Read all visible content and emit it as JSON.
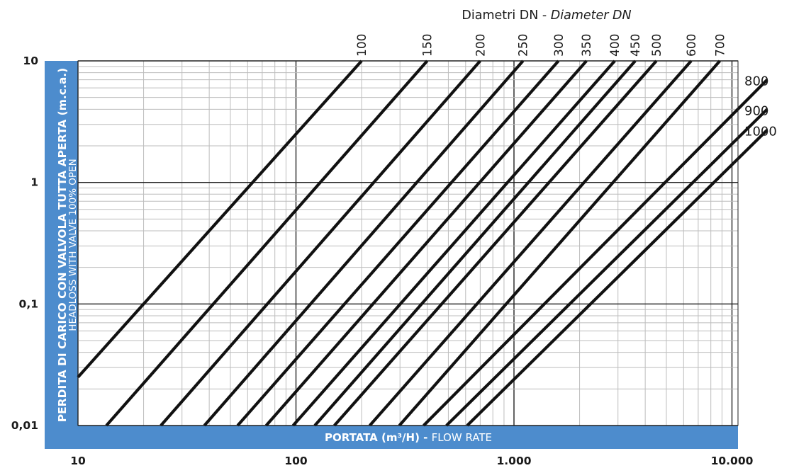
{
  "chart_data": {
    "type": "line",
    "title": "",
    "top_axis_title": {
      "regular": "Diametri DN - ",
      "italic": "Diameter DN"
    },
    "xlabel": {
      "bold": "PORTATA (m³/H) - ",
      "regular": "FLOW RATE"
    },
    "ylabel": {
      "line1": "PERDITA DI CARICO CON VALVOLA TUTTA APERTA (m.c.a.)",
      "line2": "HEADLOSS WITH VALVE 100% OPEN"
    },
    "x_scale": "log",
    "y_scale": "log",
    "xlim": [
      10,
      14500
    ],
    "ylim": [
      0.01,
      10
    ],
    "grid": true,
    "x_ticks": [
      {
        "value": 10,
        "label": "10"
      },
      {
        "value": 100,
        "label": "100"
      },
      {
        "value": 1000,
        "label": "1.000"
      },
      {
        "value": 10000,
        "label": "10.000"
      }
    ],
    "y_ticks": [
      {
        "value": 10,
        "label": "10"
      },
      {
        "value": 1,
        "label": "1"
      },
      {
        "value": 0.1,
        "label": "0,1"
      },
      {
        "value": 0.01,
        "label": "0,01"
      }
    ],
    "series": [
      {
        "name": "100",
        "x": [
          10,
          200
        ],
        "y": [
          0.025,
          10
        ]
      },
      {
        "name": "150",
        "x": [
          13.5,
          400
        ],
        "y": [
          0.01,
          10
        ]
      },
      {
        "name": "200",
        "x": [
          24,
          700
        ],
        "y": [
          0.01,
          10
        ]
      },
      {
        "name": "250",
        "x": [
          38,
          1100
        ],
        "y": [
          0.01,
          10
        ]
      },
      {
        "name": "300",
        "x": [
          54,
          1600
        ],
        "y": [
          0.01,
          10
        ]
      },
      {
        "name": "350",
        "x": [
          73,
          2150
        ],
        "y": [
          0.01,
          10
        ]
      },
      {
        "name": "400",
        "x": [
          97,
          2900
        ],
        "y": [
          0.01,
          10
        ]
      },
      {
        "name": "450",
        "x": [
          122,
          3600
        ],
        "y": [
          0.01,
          10
        ]
      },
      {
        "name": "500",
        "x": [
          150,
          4500
        ],
        "y": [
          0.01,
          10
        ]
      },
      {
        "name": "600",
        "x": [
          218,
          6500
        ],
        "y": [
          0.01,
          10
        ]
      },
      {
        "name": "700",
        "x": [
          298,
          8800
        ],
        "y": [
          0.01,
          10
        ]
      },
      {
        "name": "800",
        "x": [
          385,
          14500
        ],
        "y": [
          0.01,
          7
        ]
      },
      {
        "name": "900",
        "x": [
          490,
          14500
        ],
        "y": [
          0.01,
          4
        ]
      },
      {
        "name": "1000",
        "x": [
          610,
          14500
        ],
        "y": [
          0.01,
          2.7
        ]
      }
    ]
  }
}
